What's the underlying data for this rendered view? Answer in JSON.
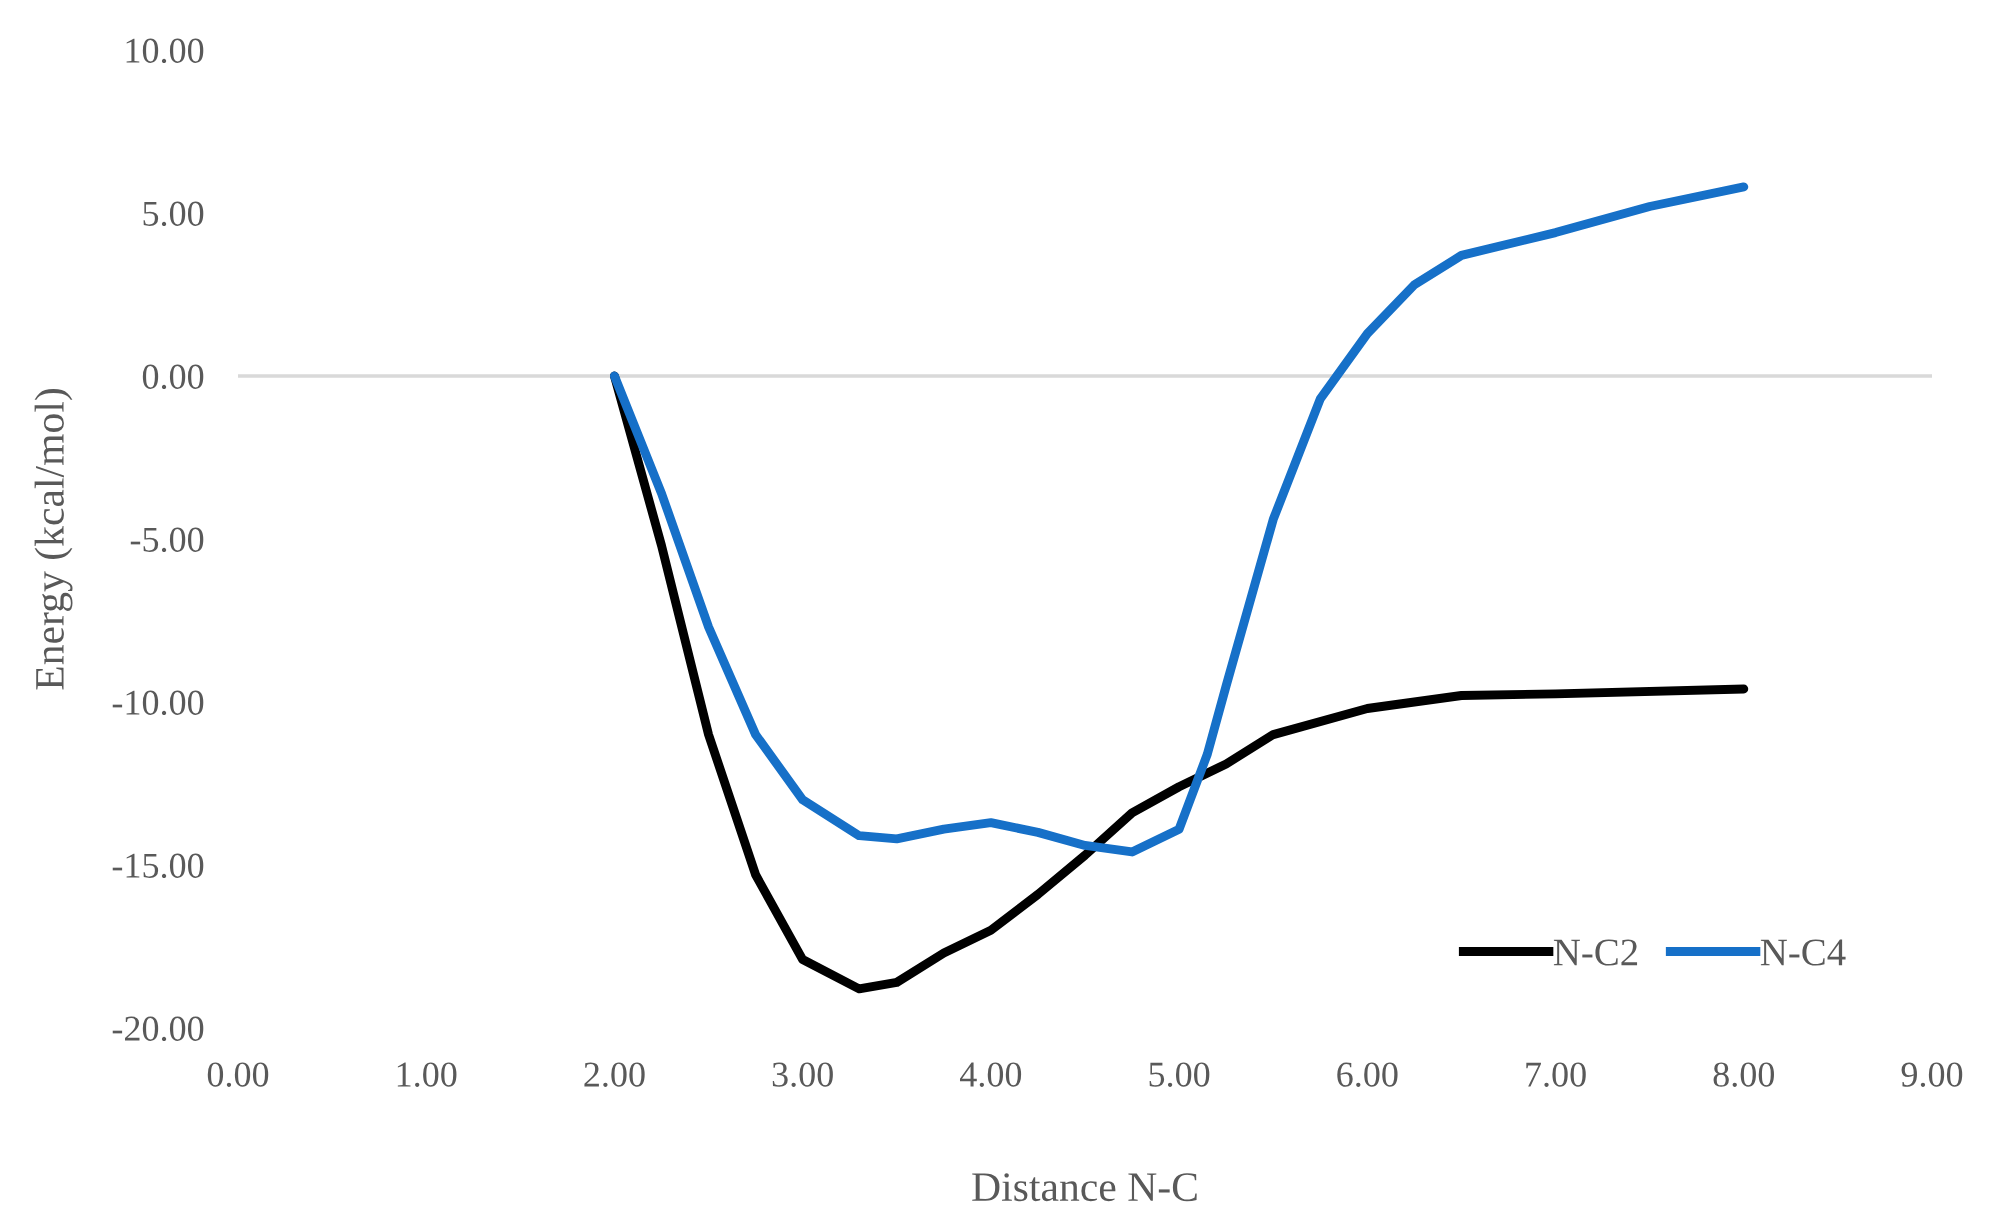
{
  "chart_data": {
    "type": "line",
    "xlabel": "Distance N-C",
    "ylabel": "Energy (kcal/mol)",
    "xlim": [
      0,
      9
    ],
    "ylim": [
      -20,
      10
    ],
    "xticks": [
      {
        "value": 0,
        "label": "0.00"
      },
      {
        "value": 1,
        "label": "1.00"
      },
      {
        "value": 2,
        "label": "2.00"
      },
      {
        "value": 3,
        "label": "3.00"
      },
      {
        "value": 4,
        "label": "4.00"
      },
      {
        "value": 5,
        "label": "5.00"
      },
      {
        "value": 6,
        "label": "6.00"
      },
      {
        "value": 7,
        "label": "7.00"
      },
      {
        "value": 8,
        "label": "8.00"
      },
      {
        "value": 9,
        "label": "9.00"
      }
    ],
    "yticks": [
      {
        "value": -20,
        "label": "-20.00"
      },
      {
        "value": -15,
        "label": "-15.00"
      },
      {
        "value": -10,
        "label": "-10.00"
      },
      {
        "value": -5,
        "label": "-5.00"
      },
      {
        "value": 0,
        "label": "0.00"
      },
      {
        "value": 5,
        "label": "5.00"
      },
      {
        "value": 10,
        "label": "10.00"
      }
    ],
    "grid": false,
    "legend": "bottom right",
    "marker": "none",
    "line_style": "solid",
    "ref_lines": [
      {
        "axis": "y",
        "value": 0,
        "label": null,
        "color": "#d9d9d9"
      }
    ],
    "series": [
      {
        "name": "N-C2",
        "color": "#000000",
        "x": [
          2,
          2.25,
          2.5,
          2.75,
          3,
          3.3,
          3.5,
          3.75,
          4,
          4.25,
          4.5,
          4.75,
          5,
          5.25,
          5.5,
          6,
          6.5,
          7,
          8
        ],
        "values": [
          0,
          -5.2,
          -11.0,
          -15.3,
          -17.9,
          -18.8,
          -18.6,
          -17.7,
          -17.0,
          -15.9,
          -14.7,
          -13.4,
          -12.6,
          -11.9,
          -11.0,
          -10.2,
          -9.8,
          -9.75,
          -9.6
        ]
      },
      {
        "name": "N-C4",
        "color": "#1670c8",
        "x": [
          2,
          2.25,
          2.5,
          2.75,
          3,
          3.3,
          3.5,
          3.75,
          4,
          4.25,
          4.5,
          4.75,
          5,
          5.15,
          5.25,
          5.5,
          5.75,
          6,
          6.25,
          6.5,
          7,
          7.5,
          8
        ],
        "values": [
          0,
          -3.6,
          -7.7,
          -11.0,
          -13.0,
          -14.1,
          -14.2,
          -13.9,
          -13.7,
          -14.0,
          -14.4,
          -14.6,
          -13.9,
          -11.6,
          -9.5,
          -4.4,
          -0.7,
          1.3,
          2.8,
          3.7,
          4.4,
          5.2,
          5.8
        ]
      }
    ]
  }
}
